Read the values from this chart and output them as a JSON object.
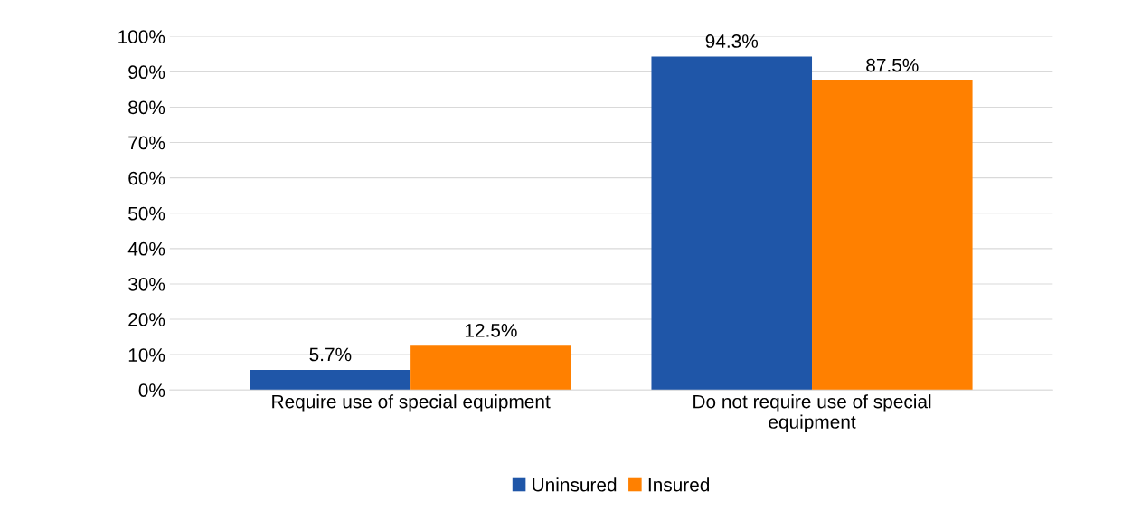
{
  "chart_data": {
    "type": "bar",
    "categories": [
      "Require use of special equipment",
      "Do not require use of special\nequipment"
    ],
    "series": [
      {
        "name": "Uninsured",
        "color": "#1f56a8",
        "values": [
          5.7,
          94.3
        ],
        "value_labels": [
          "5.7%",
          "94.3%"
        ]
      },
      {
        "name": "Insured",
        "color": "#ff8000",
        "values": [
          12.5,
          87.5
        ],
        "value_labels": [
          "12.5%",
          "87.5%"
        ]
      }
    ],
    "ylim": [
      0,
      100
    ],
    "yticks": [
      {
        "value": 0,
        "label": "0%"
      },
      {
        "value": 10,
        "label": "10%"
      },
      {
        "value": 20,
        "label": "20%"
      },
      {
        "value": 30,
        "label": "30%"
      },
      {
        "value": 40,
        "label": "40%"
      },
      {
        "value": 50,
        "label": "50%"
      },
      {
        "value": 60,
        "label": "60%"
      },
      {
        "value": 70,
        "label": "70%"
      },
      {
        "value": 80,
        "label": "80%"
      },
      {
        "value": 90,
        "label": "90%"
      },
      {
        "value": 100,
        "label": "100%"
      }
    ],
    "grid": "y",
    "legend": "bottom"
  }
}
